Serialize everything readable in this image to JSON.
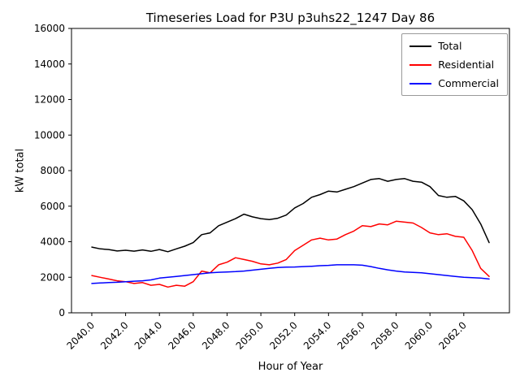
{
  "chart_data": {
    "type": "line",
    "title": "Timeseries Load for P3U p3uhs22_1247  Day 86",
    "xlabel": "Hour of Year",
    "ylabel": "kW total",
    "xlim": [
      2038.8,
      2064.7
    ],
    "ylim": [
      0,
      16000
    ],
    "grid": false,
    "legend_position": "upper right",
    "x_ticks": [
      2040,
      2042,
      2044,
      2046,
      2048,
      2050,
      2052,
      2054,
      2056,
      2058,
      2060,
      2062
    ],
    "x_tick_labels": [
      "2040.0",
      "2042.0",
      "2044.0",
      "2046.0",
      "2048.0",
      "2050.0",
      "2052.0",
      "2054.0",
      "2056.0",
      "2058.0",
      "2060.0",
      "2062.0"
    ],
    "y_ticks": [
      0,
      2000,
      4000,
      6000,
      8000,
      10000,
      12000,
      14000,
      16000
    ],
    "y_tick_labels": [
      "0",
      "2000",
      "4000",
      "6000",
      "8000",
      "10000",
      "12000",
      "14000",
      "16000"
    ],
    "x": [
      2040.0,
      2040.5,
      2041.0,
      2041.5,
      2042.0,
      2042.5,
      2043.0,
      2043.5,
      2044.0,
      2044.5,
      2045.0,
      2045.5,
      2046.0,
      2046.5,
      2047.0,
      2047.5,
      2048.0,
      2048.5,
      2049.0,
      2049.5,
      2050.0,
      2050.5,
      2051.0,
      2051.5,
      2052.0,
      2052.5,
      2053.0,
      2053.5,
      2054.0,
      2054.5,
      2055.0,
      2055.5,
      2056.0,
      2056.5,
      2057.0,
      2057.5,
      2058.0,
      2058.5,
      2059.0,
      2059.5,
      2060.0,
      2060.5,
      2061.0,
      2061.5,
      2062.0,
      2062.5,
      2063.0,
      2063.5
    ],
    "series": [
      {
        "name": "Total",
        "color": "#000000",
        "values": [
          3700,
          3600,
          3560,
          3480,
          3520,
          3470,
          3540,
          3460,
          3560,
          3440,
          3600,
          3750,
          3950,
          4400,
          4500,
          4900,
          5100,
          5300,
          5550,
          5400,
          5300,
          5250,
          5320,
          5500,
          5900,
          6150,
          6500,
          6650,
          6850,
          6800,
          6950,
          7100,
          7300,
          7500,
          7550,
          7400,
          7500,
          7550,
          7400,
          7350,
          7100,
          6600,
          6500,
          6550,
          6300,
          5800,
          5000,
          3950
        ]
      },
      {
        "name": "Residential",
        "color": "#ff0000",
        "values": [
          2100,
          2000,
          1900,
          1800,
          1750,
          1650,
          1700,
          1550,
          1600,
          1450,
          1550,
          1500,
          1750,
          2350,
          2250,
          2700,
          2850,
          3100,
          3000,
          2900,
          2750,
          2700,
          2800,
          3000,
          3500,
          3800,
          4100,
          4200,
          4100,
          4150,
          4400,
          4600,
          4900,
          4850,
          5000,
          4950,
          5150,
          5100,
          5050,
          4800,
          4500,
          4400,
          4450,
          4300,
          4250,
          3500,
          2500,
          2050
        ]
      },
      {
        "name": "Commercial",
        "color": "#0000ff",
        "values": [
          1650,
          1680,
          1700,
          1720,
          1750,
          1780,
          1800,
          1850,
          1950,
          2000,
          2050,
          2100,
          2150,
          2200,
          2250,
          2280,
          2300,
          2320,
          2350,
          2400,
          2450,
          2500,
          2550,
          2570,
          2580,
          2600,
          2620,
          2650,
          2670,
          2700,
          2700,
          2700,
          2680,
          2600,
          2500,
          2420,
          2350,
          2300,
          2270,
          2250,
          2200,
          2150,
          2100,
          2050,
          2000,
          1980,
          1950,
          1900
        ]
      }
    ]
  }
}
